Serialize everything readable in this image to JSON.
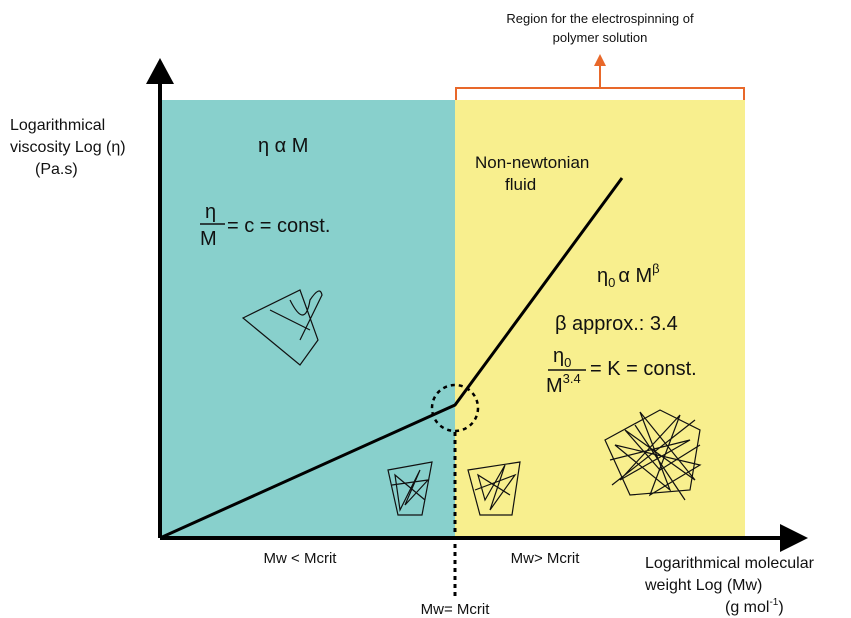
{
  "annotation": [
    "Region for the electrospinning of",
    "polymer solution"
  ],
  "y_axis_label": [
    "Logarithmical",
    "viscosity  Log (η)",
    "(Pa.s)"
  ],
  "x_axis_label": {
    "lines": [
      "Logarithmical molecular",
      "weight Log (Mw)"
    ],
    "unit": {
      "base": "(g mol",
      "sup": "-1",
      "end": ")"
    }
  },
  "left_region": {
    "relation": "η α M",
    "ratio": {
      "numerator": "η",
      "denominator": "M",
      "rest": "= c = const."
    },
    "label": "Mw < Mcrit"
  },
  "right_region": {
    "fluid": [
      "Non-newtonian",
      "fluid"
    ],
    "relation": {
      "base": "η",
      "sub": "0",
      "mid": "α M",
      "sup": "β"
    },
    "beta": "β approx.: 3.4",
    "ratio": {
      "numerator": "η",
      "numerator_sub": "0",
      "denominator": "M",
      "denominator_sup": "3.4",
      "rest": "= K = const."
    },
    "label": "Mw> Mcrit"
  },
  "critical_label": "Mw= Mcrit"
}
